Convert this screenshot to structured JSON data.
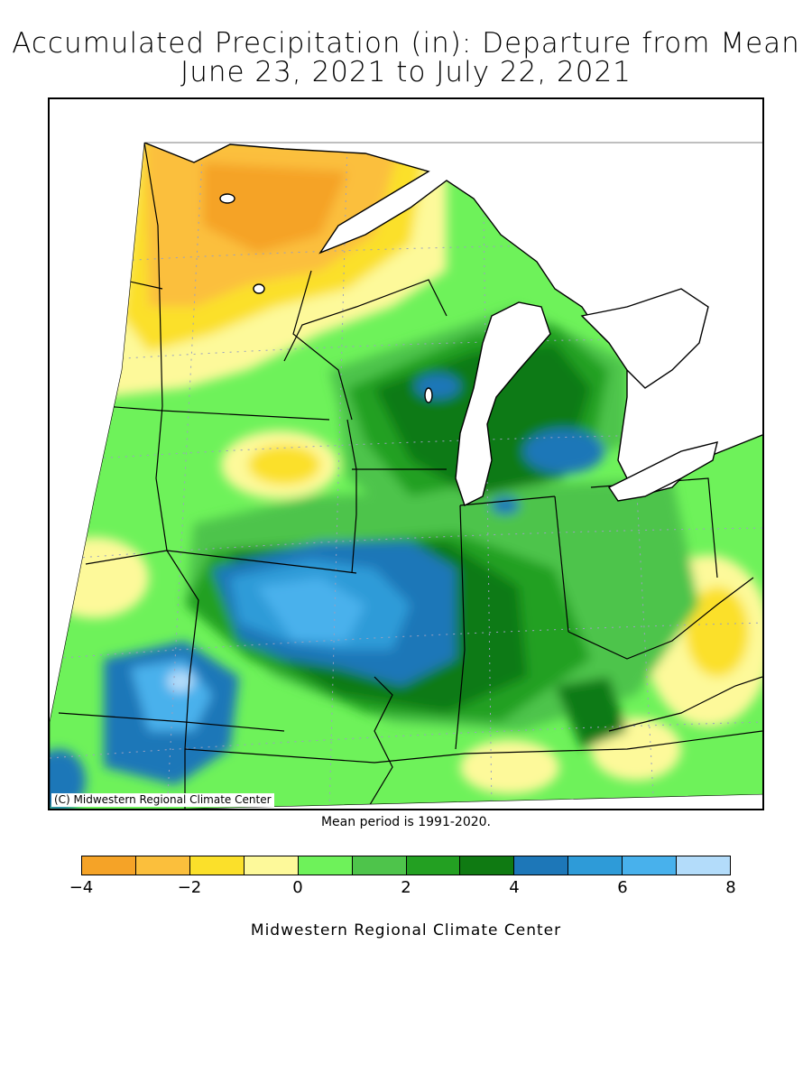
{
  "title_line1": "Accumulated Precipitation (in): Departure from Mean",
  "title_line2": "June 23, 2021 to July 22, 2021",
  "copyright": "(C) Midwestern Regional Climate Center",
  "mean_period_note": "Mean period is 1991-2020.",
  "credit": "Midwestern Regional Climate Center",
  "legend": {
    "colors": [
      "#f5a327",
      "#fbbf3c",
      "#fbe02a",
      "#fdf99a",
      "#6ef25a",
      "#4ec44b",
      "#23a022",
      "#0f7a12",
      "#1d77b8",
      "#2e9bd8",
      "#48b1ec",
      "#b3dcfa"
    ],
    "ticks": [
      "-4",
      "-2",
      "0",
      "2",
      "4",
      "6",
      "8"
    ]
  },
  "colors": {
    "lake": "#ffffff",
    "outline": "#000000"
  }
}
